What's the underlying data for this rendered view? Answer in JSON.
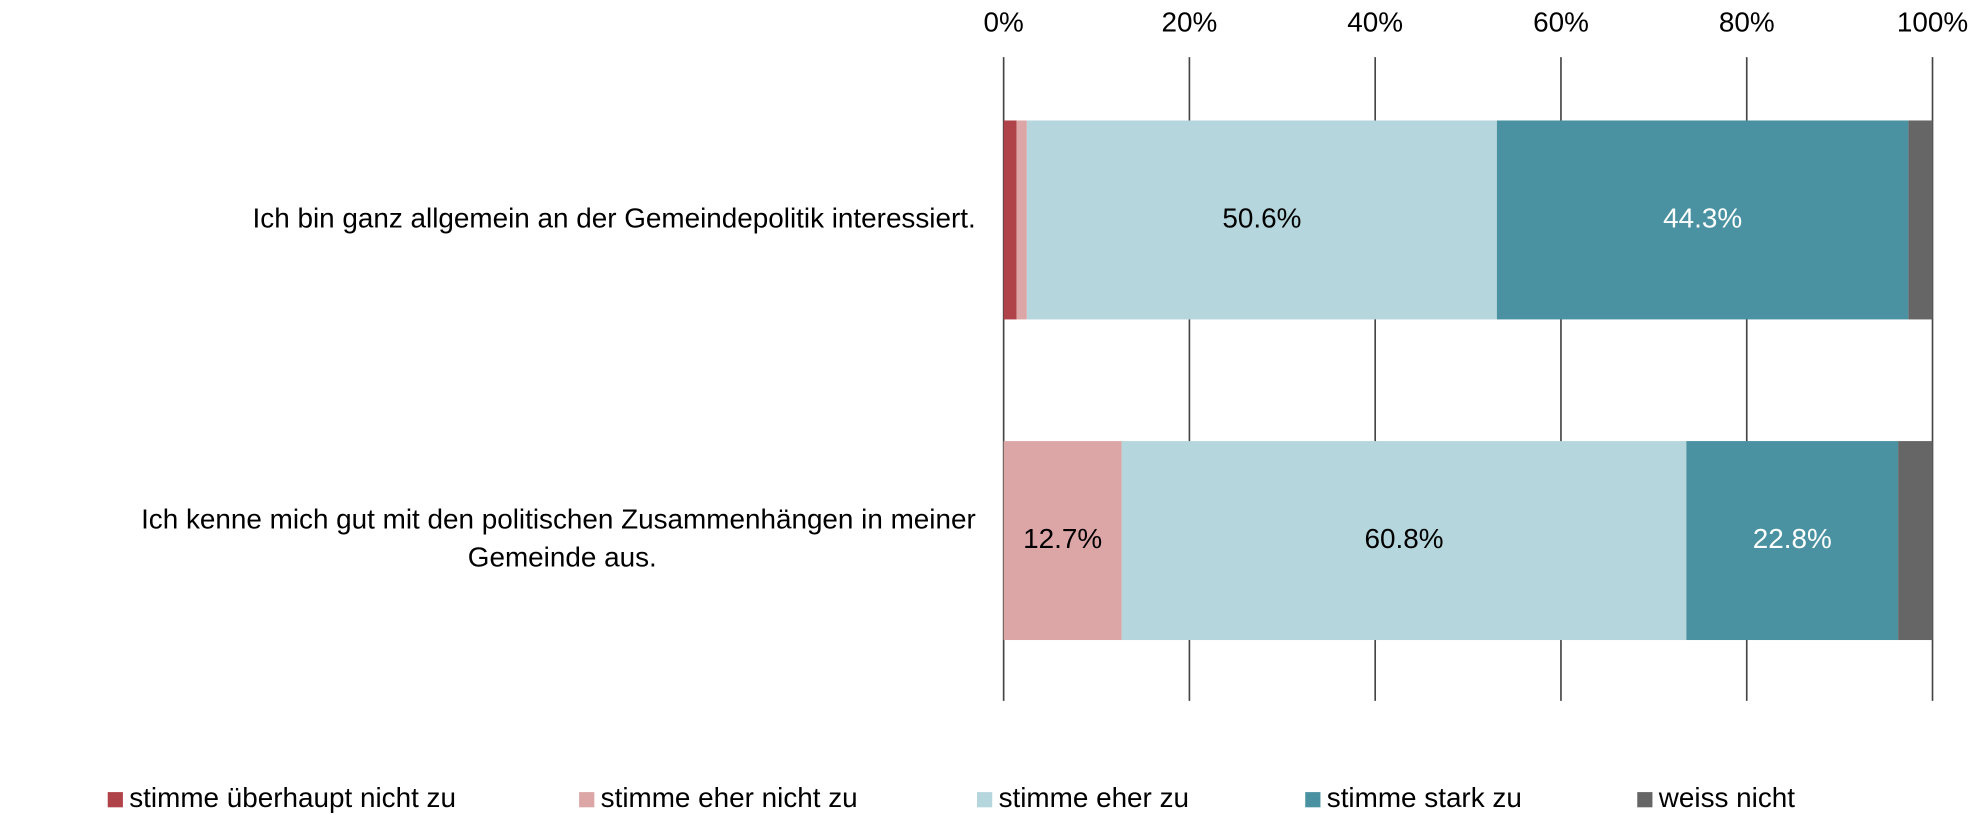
{
  "chart_data": {
    "type": "stacked_barh",
    "categories": [
      "Ich bin ganz allgemein an der Gemeindepolitik interessiert.",
      "Ich kenne mich gut mit den politischen Zusammenhängen in meiner Gemeinde aus."
    ],
    "series": [
      {
        "name": "stimme überhaupt nicht zu",
        "color": "#b0434a",
        "values": [
          1.4,
          0
        ],
        "value_labels": [
          null,
          null
        ]
      },
      {
        "name": "stimme eher nicht zu",
        "color": "#dca6a6",
        "values": [
          1.1,
          12.7
        ],
        "value_labels": [
          null,
          "12.7%"
        ]
      },
      {
        "name": "stimme eher zu",
        "color": "#b5d6dc",
        "values": [
          50.6,
          60.8
        ],
        "value_labels": [
          "50.6%",
          "60.8%"
        ]
      },
      {
        "name": "stimme stark zu",
        "color": "#4a92a2",
        "values": [
          44.3,
          22.8
        ],
        "value_labels": [
          "44.3%",
          "22.8%"
        ]
      },
      {
        "name": "weiss nicht",
        "color": "#666666",
        "values": [
          2.6,
          3.7
        ],
        "value_labels": [
          null,
          null
        ]
      }
    ],
    "xlim": [
      0,
      100
    ],
    "xticks": [
      {
        "value": 0,
        "label": "0%"
      },
      {
        "value": 20,
        "label": "20%"
      },
      {
        "value": 40,
        "label": "40%"
      },
      {
        "value": 60,
        "label": "60%"
      },
      {
        "value": 80,
        "label": "80%"
      },
      {
        "value": 100,
        "label": "100%"
      }
    ],
    "grid": true,
    "legend": "bottom"
  }
}
